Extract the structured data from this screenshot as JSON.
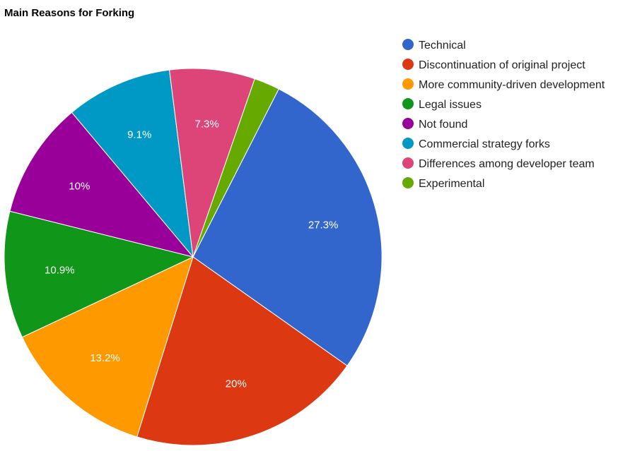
{
  "chart_data": {
    "type": "pie",
    "title": "Main Reasons for Forking",
    "legend_position": "right",
    "start_angle_deg": 27,
    "direction": "clockwise",
    "slices": [
      {
        "name": "Technical",
        "value": 27.3,
        "label": "27.3%",
        "color": "#3366cc"
      },
      {
        "name": "Discontinuation of original project",
        "value": 20,
        "label": "20%",
        "color": "#dc3912"
      },
      {
        "name": "More community-driven development",
        "value": 13.2,
        "label": "13.2%",
        "color": "#ff9900"
      },
      {
        "name": "Legal issues",
        "value": 10.9,
        "label": "10.9%",
        "color": "#109618"
      },
      {
        "name": "Not found",
        "value": 10,
        "label": "10%",
        "color": "#990099"
      },
      {
        "name": "Commercial strategy forks",
        "value": 9.1,
        "label": "9.1%",
        "color": "#0099c6"
      },
      {
        "name": "Differences among developer team",
        "value": 7.3,
        "label": "7.3%",
        "color": "#dd4477"
      },
      {
        "name": "Experimental",
        "value": 2.2,
        "label": "",
        "color": "#66aa00"
      }
    ]
  }
}
